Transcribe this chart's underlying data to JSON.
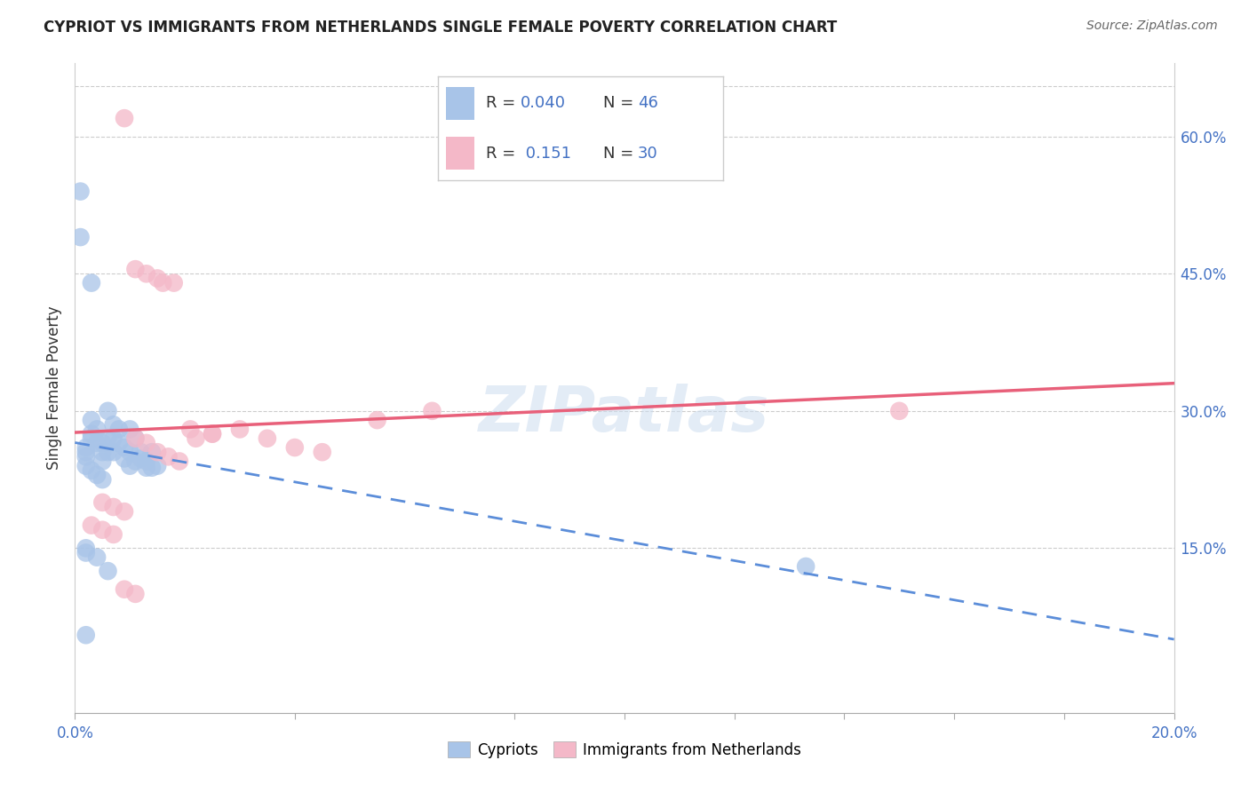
{
  "title": "CYPRIOT VS IMMIGRANTS FROM NETHERLANDS SINGLE FEMALE POVERTY CORRELATION CHART",
  "source": "Source: ZipAtlas.com",
  "ylabel": "Single Female Poverty",
  "ytick_values": [
    0.15,
    0.3,
    0.45,
    0.6
  ],
  "xmin": 0.0,
  "xmax": 0.2,
  "ymin": -0.03,
  "ymax": 0.68,
  "color_cypriot": "#a8c4e8",
  "color_netherlands": "#f4b8c8",
  "color_line_cypriot": "#5b8dd9",
  "color_line_netherlands": "#e8607a",
  "watermark": "ZIPatlas",
  "cypriot_x": [
    0.001,
    0.001,
    0.002,
    0.002,
    0.002,
    0.002,
    0.003,
    0.003,
    0.003,
    0.003,
    0.004,
    0.004,
    0.004,
    0.005,
    0.005,
    0.005,
    0.006,
    0.006,
    0.006,
    0.007,
    0.007,
    0.007,
    0.008,
    0.008,
    0.009,
    0.009,
    0.01,
    0.01,
    0.01,
    0.011,
    0.011,
    0.012,
    0.012,
    0.013,
    0.013,
    0.014,
    0.014,
    0.015,
    0.002,
    0.003,
    0.004,
    0.005,
    0.006,
    0.002,
    0.133,
    0.002
  ],
  "cypriot_y": [
    0.54,
    0.49,
    0.26,
    0.255,
    0.25,
    0.15,
    0.44,
    0.29,
    0.275,
    0.27,
    0.28,
    0.265,
    0.14,
    0.265,
    0.255,
    0.245,
    0.3,
    0.27,
    0.255,
    0.285,
    0.27,
    0.255,
    0.28,
    0.265,
    0.26,
    0.248,
    0.28,
    0.255,
    0.24,
    0.27,
    0.245,
    0.255,
    0.248,
    0.245,
    0.238,
    0.255,
    0.238,
    0.24,
    0.24,
    0.235,
    0.23,
    0.225,
    0.125,
    0.145,
    0.13,
    0.055
  ],
  "netherlands_x": [
    0.009,
    0.011,
    0.013,
    0.015,
    0.016,
    0.018,
    0.021,
    0.025,
    0.005,
    0.007,
    0.009,
    0.011,
    0.013,
    0.015,
    0.017,
    0.019,
    0.022,
    0.025,
    0.03,
    0.035,
    0.04,
    0.045,
    0.055,
    0.065,
    0.15,
    0.003,
    0.005,
    0.007,
    0.009,
    0.011
  ],
  "netherlands_y": [
    0.62,
    0.455,
    0.45,
    0.445,
    0.44,
    0.44,
    0.28,
    0.275,
    0.2,
    0.195,
    0.19,
    0.27,
    0.265,
    0.255,
    0.25,
    0.245,
    0.27,
    0.275,
    0.28,
    0.27,
    0.26,
    0.255,
    0.29,
    0.3,
    0.3,
    0.175,
    0.17,
    0.165,
    0.105,
    0.1
  ],
  "legend_text": [
    {
      "color": "#a8c4e8",
      "r": "R = 0.040",
      "n": "N = 46"
    },
    {
      "color": "#f4b8c8",
      "r": "R =  0.151",
      "n": "N = 30"
    }
  ]
}
